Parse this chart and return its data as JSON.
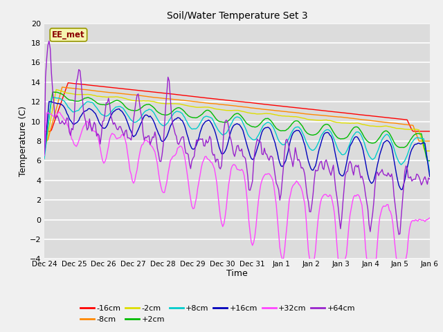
{
  "title": "Soil/Water Temperature Set 3",
  "xlabel": "Time",
  "ylabel": "Temperature (C)",
  "ylim": [
    -4,
    20
  ],
  "yticks": [
    -4,
    -2,
    0,
    2,
    4,
    6,
    8,
    10,
    12,
    14,
    16,
    18,
    20
  ],
  "x_labels": [
    "Dec 24",
    "Dec 25",
    "Dec 26",
    "Dec 27",
    "Dec 28",
    "Dec 29",
    "Dec 30",
    "Dec 31",
    "Jan 1",
    "Jan 2",
    "Jan 3",
    "Jan 4",
    "Jan 5",
    "Jan 6"
  ],
  "series": [
    {
      "label": "-16cm",
      "color": "#ff0000"
    },
    {
      "label": "-8cm",
      "color": "#ff8800"
    },
    {
      "label": "-2cm",
      "color": "#dddd00"
    },
    {
      "label": "+2cm",
      "color": "#00bb00"
    },
    {
      "label": "+8cm",
      "color": "#00cccc"
    },
    {
      "label": "+16cm",
      "color": "#0000bb"
    },
    {
      "label": "+32cm",
      "color": "#ff44ff"
    },
    {
      "label": "+64cm",
      "color": "#9922cc"
    }
  ],
  "watermark": "EE_met",
  "plot_bg_color": "#dcdcdc",
  "fig_bg_color": "#f0f0f0",
  "n_points": 325
}
